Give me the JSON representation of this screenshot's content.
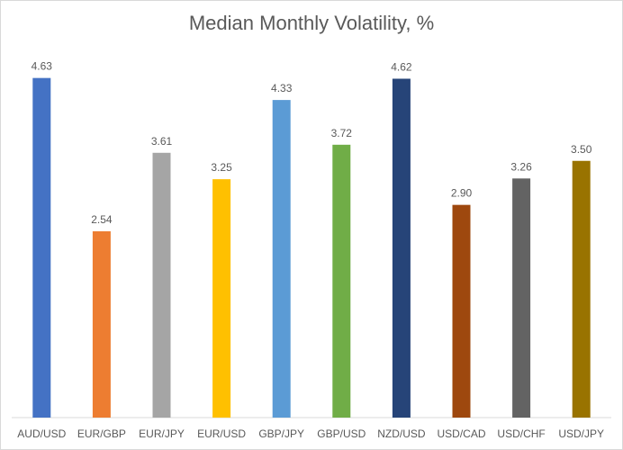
{
  "chart_data": {
    "type": "bar",
    "title": "Median Monthly Volatility, %",
    "xlabel": "",
    "ylabel": "",
    "categories": [
      "AUD/USD",
      "EUR/GBP",
      "EUR/JPY",
      "EUR/USD",
      "GBP/JPY",
      "GBP/USD",
      "NZD/USD",
      "USD/CAD",
      "USD/CHF",
      "USD/JPY"
    ],
    "values": [
      4.63,
      2.54,
      3.61,
      3.25,
      4.33,
      3.72,
      4.62,
      2.9,
      3.26,
      3.5
    ],
    "value_labels": [
      "4.63",
      "2.54",
      "3.61",
      "3.25",
      "4.33",
      "3.72",
      "4.62",
      "2.90",
      "3.26",
      "3.50"
    ],
    "colors": [
      "#4472c4",
      "#ed7d31",
      "#a5a5a5",
      "#ffc000",
      "#5b9bd5",
      "#70ad47",
      "#264478",
      "#9e480e",
      "#636363",
      "#997300"
    ],
    "ylim": [
      0,
      5
    ],
    "grid": false,
    "legend": "none",
    "axis_color": "#d9d9d9"
  }
}
